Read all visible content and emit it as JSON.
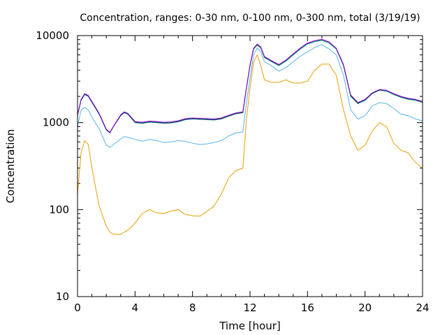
{
  "chart_data": {
    "type": "line",
    "title": "Concentration, ranges: 0-30 nm, 0-100 nm, 0-300 nm, total (3/19/19)",
    "xlabel": "Time [hour]",
    "ylabel": "Concentration",
    "xlim": [
      0,
      24
    ],
    "ylim": [
      10,
      10000
    ],
    "yscale": "log",
    "grid": false,
    "legend": "none",
    "x_ticks": [
      0,
      4,
      8,
      12,
      16,
      20,
      24
    ],
    "x_tick_labels": [
      "0",
      "4",
      "8",
      "12",
      "16",
      "20",
      "24"
    ],
    "y_ticks": [
      10,
      100,
      1000,
      10000
    ],
    "y_tick_labels": [
      "10",
      "100",
      "1000",
      "10000"
    ],
    "x": [
      0,
      0.25,
      0.5,
      0.75,
      1,
      1.5,
      2,
      2.25,
      2.5,
      3,
      3.25,
      3.5,
      4,
      4.5,
      5,
      5.5,
      6,
      6.5,
      7,
      7.5,
      8,
      8.5,
      9,
      9.5,
      10,
      10.5,
      11,
      11.5,
      11.75,
      12,
      12.25,
      12.5,
      12.75,
      13,
      13.5,
      14,
      14.5,
      15,
      15.5,
      16,
      16.5,
      17,
      17.5,
      18,
      18.5,
      19,
      19.5,
      20,
      20.5,
      21,
      21.5,
      22,
      22.5,
      23,
      23.5,
      24
    ],
    "series": [
      {
        "color": "#e69f00",
        "values": [
          150,
          450,
          620,
          560,
          300,
          110,
          65,
          55,
          52,
          52,
          55,
          58,
          70,
          90,
          100,
          92,
          90,
          96,
          100,
          88,
          85,
          84,
          95,
          110,
          150,
          230,
          280,
          300,
          1100,
          2500,
          5000,
          6000,
          4500,
          3100,
          2900,
          2900,
          3100,
          2850,
          2850,
          3000,
          4000,
          4700,
          4700,
          3500,
          1400,
          700,
          480,
          550,
          800,
          1000,
          900,
          580,
          480,
          450,
          350,
          300
        ]
      },
      {
        "color": "#56b4e9",
        "values": [
          900,
          1400,
          1500,
          1400,
          1150,
          850,
          550,
          520,
          560,
          650,
          690,
          680,
          640,
          610,
          640,
          620,
          590,
          600,
          620,
          610,
          580,
          560,
          570,
          590,
          620,
          700,
          760,
          780,
          1700,
          3200,
          6000,
          7200,
          6500,
          5000,
          4500,
          3900,
          4300,
          5000,
          5800,
          6500,
          7300,
          7900,
          7000,
          6000,
          3500,
          1400,
          1100,
          1200,
          1550,
          1700,
          1650,
          1450,
          1250,
          1200,
          1100,
          1050
        ]
      },
      {
        "color": "#009e73",
        "values": [
          1200,
          1800,
          2100,
          2000,
          1700,
          1250,
          820,
          760,
          900,
          1200,
          1300,
          1250,
          1000,
          980,
          1010,
          1000,
          980,
          990,
          1020,
          1080,
          1100,
          1090,
          1080,
          1070,
          1100,
          1180,
          1260,
          1300,
          2500,
          4500,
          7000,
          7800,
          7200,
          5600,
          5000,
          4500,
          5100,
          6000,
          7000,
          8000,
          8500,
          8800,
          8200,
          7000,
          4500,
          2000,
          1650,
          1800,
          2150,
          2350,
          2300,
          2100,
          1950,
          1850,
          1800,
          1700
        ]
      },
      {
        "color": "#0a3c64",
        "values": [
          1210,
          1820,
          2120,
          2020,
          1720,
          1260,
          830,
          765,
          905,
          1210,
          1310,
          1260,
          1010,
          990,
          1020,
          1010,
          990,
          1000,
          1030,
          1090,
          1110,
          1100,
          1090,
          1080,
          1110,
          1190,
          1270,
          1310,
          2520,
          4550,
          7100,
          7950,
          7350,
          5700,
          5100,
          4600,
          5200,
          6100,
          7150,
          8150,
          8700,
          9000,
          8400,
          7100,
          4600,
          2050,
          1680,
          1820,
          2180,
          2380,
          2330,
          2130,
          1980,
          1880,
          1830,
          1730
        ]
      },
      {
        "color": "#9400d3",
        "values": [
          1230,
          1850,
          2150,
          2050,
          1750,
          1280,
          840,
          770,
          910,
          1230,
          1330,
          1280,
          1030,
          1010,
          1040,
          1030,
          1010,
          1020,
          1050,
          1110,
          1130,
          1120,
          1110,
          1100,
          1130,
          1210,
          1290,
          1330,
          2540,
          4600,
          7150,
          8000,
          7400,
          5750,
          5150,
          4650,
          5250,
          6150,
          7200,
          8200,
          8750,
          9050,
          8450,
          7150,
          4650,
          2080,
          1700,
          1850,
          2200,
          2400,
          2350,
          2150,
          2000,
          1900,
          1850,
          1750
        ]
      }
    ]
  }
}
